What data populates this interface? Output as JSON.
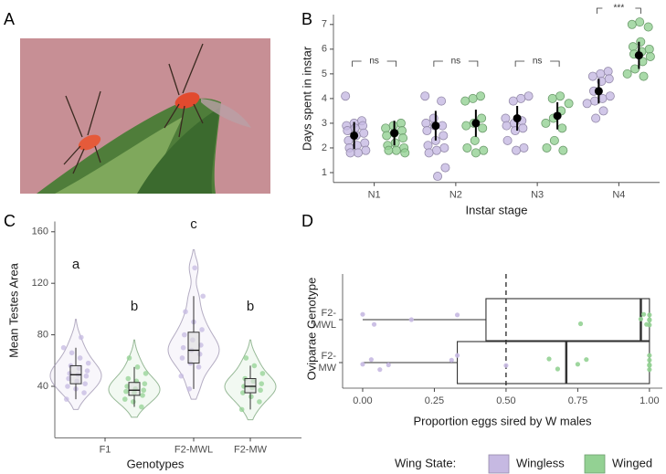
{
  "figure_panel": "A",
  "legend": {
    "title": "Wing State:",
    "items": [
      {
        "name": "Wingless",
        "color": "#c6b9e2"
      },
      {
        "name": "Winged",
        "color": "#93d193"
      }
    ]
  },
  "chart_data": [
    {
      "type": "strip",
      "panel": "B",
      "ylabel": "Days spent in instar",
      "xlabel": "Instar stage",
      "categories": [
        "N1",
        "N2",
        "N3",
        "N4"
      ],
      "ylim": [
        0.6,
        7.4
      ],
      "yticks": [
        1,
        2,
        3,
        4,
        5,
        6,
        7
      ],
      "series": [
        {
          "points": [
            [
              4.1,
              3.1,
              3.0,
              2.9,
              2.9,
              2.8,
              2.7,
              2.6,
              2.5,
              2.3,
              2.2,
              2.1,
              2.0,
              1.9,
              1.8,
              1.8
            ],
            [
              4.1,
              3.9,
              3.2,
              3.0,
              2.9,
              2.9,
              2.7,
              2.5,
              2.3,
              2.1,
              2.0,
              1.9,
              1.8,
              1.2,
              0.85
            ],
            [
              4.1,
              4.0,
              3.9,
              3.2,
              3.1,
              3.0,
              2.9,
              2.8,
              2.7,
              2.3,
              2.0,
              1.9
            ],
            [
              5.1,
              5.0,
              4.9,
              4.8,
              4.7,
              4.3,
              4.1,
              4.0,
              3.9,
              3.8,
              3.5,
              3.2
            ]
          ],
          "means": [
            2.5,
            2.9,
            3.2,
            4.3
          ],
          "sd": [
            0.55,
            0.6,
            0.5,
            0.5
          ]
        },
        {
          "points": [
            [
              3.0,
              2.9,
              2.8,
              2.7,
              2.6,
              2.5,
              2.4,
              2.2,
              2.1,
              2.0,
              1.9,
              1.9,
              1.8
            ],
            [
              4.1,
              4.0,
              3.9,
              3.2,
              3.0,
              2.9,
              2.8,
              2.3,
              2.0,
              1.9,
              1.8
            ],
            [
              4.1,
              4.0,
              3.8,
              3.5,
              3.2,
              3.0,
              2.8,
              2.3,
              2.0,
              1.9
            ],
            [
              7.1,
              7.0,
              6.9,
              6.3,
              6.1,
              6.0,
              5.9,
              5.8,
              5.7,
              5.5,
              5.2,
              5.0,
              4.9
            ]
          ],
          "means": [
            2.6,
            3.0,
            3.3,
            5.75
          ],
          "sd": [
            0.5,
            0.55,
            0.55,
            0.55
          ]
        }
      ],
      "significance": [
        "ns",
        "ns",
        "ns",
        "***"
      ]
    },
    {
      "type": "violin",
      "panel": "C",
      "ylabel": "Mean Testes Area",
      "xlabel": "Genotypes",
      "categories": [
        "F1",
        "F2-MWL",
        "F2-MW"
      ],
      "ylim": [
        0,
        168
      ],
      "yticks": [
        40,
        80,
        120,
        160
      ],
      "series": [
        {
          "points": [
            [
              30,
              35,
              38,
              40,
              42,
              44,
              46,
              48,
              49,
              50,
              52,
              54,
              56,
              58,
              62,
              66,
              70,
              78
            ],
            [
              38,
              48,
              55,
              58,
              62,
              65,
              68,
              70,
              72,
              76,
              80,
              84,
              90,
              98,
              110,
              132
            ],
            null
          ],
          "q1": [
            42,
            58,
            null
          ],
          "median": [
            49,
            68,
            null
          ],
          "q3": [
            56,
            82,
            null
          ],
          "whisker_low": [
            30,
            38,
            null
          ],
          "whisker_high": [
            70,
            110,
            null
          ],
          "letters": [
            "a",
            "c",
            null
          ]
        },
        {
          "points": [
            [
              24,
              28,
              30,
              33,
              35,
              36,
              37,
              38,
              40,
              42,
              44,
              46,
              50,
              55,
              62
            ],
            null,
            [
              22,
              28,
              32,
              35,
              37,
              39,
              40,
              42,
              44,
              46,
              50,
              56,
              62
            ]
          ],
          "q1": [
            33,
            null,
            35
          ],
          "median": [
            37,
            null,
            40
          ],
          "q3": [
            43,
            null,
            46
          ],
          "whisker_low": [
            24,
            null,
            22
          ],
          "whisker_high": [
            55,
            null,
            56
          ],
          "letters": [
            "b",
            null,
            "b"
          ]
        }
      ]
    },
    {
      "type": "boxplot",
      "panel": "D",
      "ylabel": "Oviparae Genotype",
      "xlabel": "Proportion eggs sired by W males",
      "categories": [
        "F2-MWL",
        "F2-MW"
      ],
      "xlim": [
        -0.07,
        1.045
      ],
      "xticks": [
        {
          "value": 0,
          "label": "0.00"
        },
        {
          "value": 0.25,
          "label": "0.25"
        },
        {
          "value": 0.5,
          "label": "0.50"
        },
        {
          "value": 0.75,
          "label": "0.75"
        },
        {
          "value": 1,
          "label": "1.00"
        }
      ],
      "reference_line": 0.5,
      "box": {
        "q1": [
          0.43,
          0.33
        ],
        "median": [
          0.97,
          0.71
        ],
        "q3": [
          1,
          1
        ],
        "whisker_low": [
          0,
          0
        ],
        "whisker_high": [
          1,
          1
        ]
      },
      "series": [
        {
          "points": [
            [
              0,
              0.04,
              0.17,
              0.33
            ],
            [
              0,
              0.03,
              0.06,
              0.09,
              0.31,
              0.33,
              0.5
            ]
          ]
        },
        {
          "points": [
            [
              0.76,
              0.97,
              0.98,
              0.99,
              1,
              1,
              1,
              1
            ],
            [
              0.65,
              0.68,
              0.75,
              0.78,
              1,
              1,
              1,
              1,
              1
            ]
          ]
        }
      ]
    }
  ]
}
